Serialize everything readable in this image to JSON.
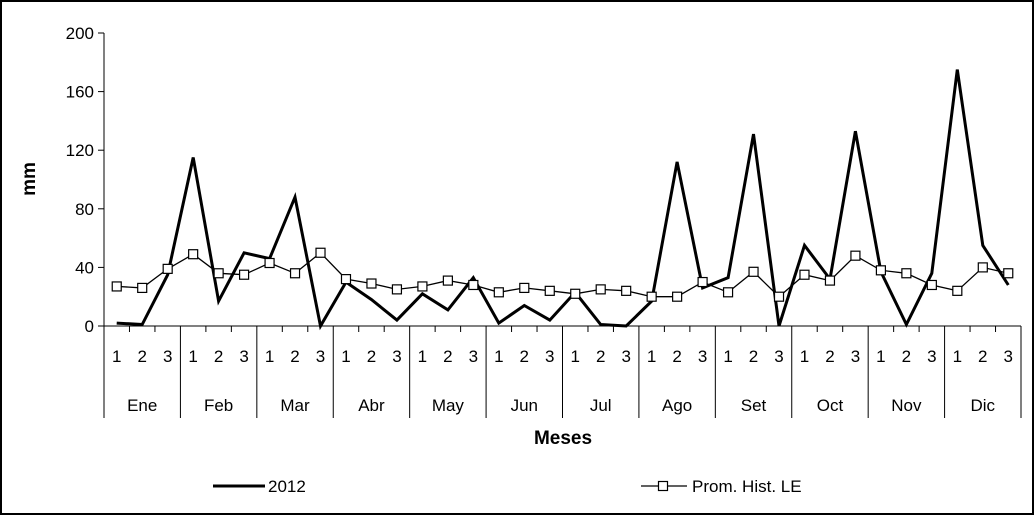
{
  "chart_data": {
    "type": "line",
    "ylabel": "mm",
    "xlabel": "Meses",
    "ylim": [
      0,
      200
    ],
    "yticks": [
      "0",
      "40",
      "80",
      "120",
      "160",
      "200"
    ],
    "months": [
      "Ene",
      "Feb",
      "Mar",
      "Abr",
      "May",
      "Jun",
      "Jul",
      "Ago",
      "Set",
      "Oct",
      "Nov",
      "Dic"
    ],
    "decades": [
      "1",
      "2",
      "3"
    ],
    "legend_position": "bottom",
    "grid": false,
    "series": [
      {
        "name": "2012",
        "color": "#000000",
        "marker": "none",
        "values": [
          2,
          1,
          35,
          115,
          17,
          50,
          46,
          88,
          0,
          30,
          18,
          4,
          22,
          11,
          33,
          2,
          14,
          4,
          23,
          1,
          0,
          17,
          112,
          26,
          33,
          131,
          0,
          55,
          32,
          133,
          37,
          1,
          36,
          175,
          55,
          28
        ]
      },
      {
        "name": "Prom. Hist. LE",
        "color": "#000000",
        "marker": "square",
        "values": [
          27,
          26,
          39,
          49,
          36,
          35,
          43,
          36,
          50,
          32,
          29,
          25,
          27,
          31,
          28,
          23,
          26,
          24,
          22,
          25,
          24,
          20,
          20,
          30,
          23,
          37,
          20,
          35,
          31,
          48,
          38,
          36,
          28,
          24,
          40,
          36
        ]
      }
    ]
  }
}
